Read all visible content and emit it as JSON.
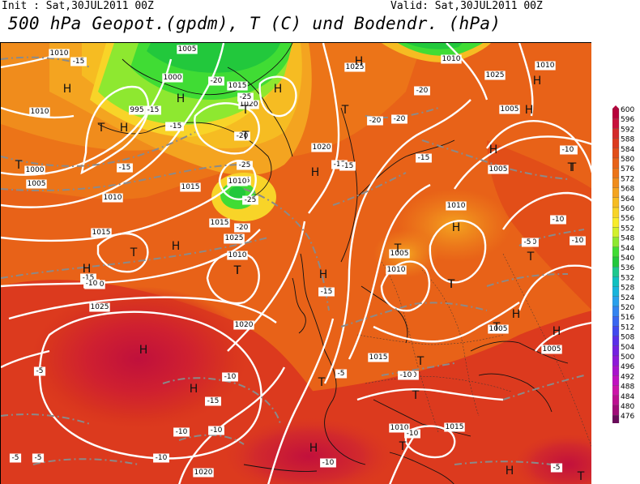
{
  "header": {
    "init": "Init : Sat,30JUL2011 00Z",
    "valid": "Valid: Sat,30JUL2011 00Z",
    "title": "500 hPa Geopot.(gpdm), T (C) und Bodendr. (hPa)"
  },
  "legend": {
    "levels": [
      "600",
      "596",
      "592",
      "588",
      "584",
      "580",
      "576",
      "572",
      "568",
      "564",
      "560",
      "556",
      "552",
      "548",
      "544",
      "540",
      "536",
      "532",
      "528",
      "524",
      "520",
      "516",
      "512",
      "508",
      "504",
      "500",
      "496",
      "492",
      "488",
      "484",
      "480",
      "476"
    ],
    "colors": [
      "#b7003a",
      "#c8103c",
      "#d42a2a",
      "#dc3a1e",
      "#e24e18",
      "#e86218",
      "#ec7418",
      "#f08c1c",
      "#f4a420",
      "#f6bc22",
      "#f8d428",
      "#f8ec2c",
      "#d2f02c",
      "#8ee830",
      "#40dc34",
      "#22c83c",
      "#1ec88e",
      "#10c0c0",
      "#18b4dc",
      "#2aa0ec",
      "#3484f0",
      "#3a66f0",
      "#4248ee",
      "#5a2ee8",
      "#7420e0",
      "#8e18d8",
      "#a812cc",
      "#c010c0",
      "#cc14a8",
      "#bc1090",
      "#a00c78",
      "#6a0a5a"
    ]
  },
  "map": {
    "pressure_labels": [
      {
        "text": "1010"
      },
      {
        "text": "1005"
      },
      {
        "text": "1000"
      },
      {
        "text": "995"
      },
      {
        "text": "1010"
      },
      {
        "text": "1015"
      },
      {
        "text": "1020"
      },
      {
        "text": "1025"
      },
      {
        "text": "1010"
      },
      {
        "text": "1025"
      },
      {
        "text": "1010"
      },
      {
        "text": "1005"
      },
      {
        "text": "1000"
      },
      {
        "text": "1005"
      },
      {
        "text": "1010"
      },
      {
        "text": "1015"
      },
      {
        "text": "1015"
      },
      {
        "text": "1010"
      },
      {
        "text": "1020"
      },
      {
        "text": "1025"
      },
      {
        "text": "1020"
      },
      {
        "text": "1020"
      },
      {
        "text": "1015"
      },
      {
        "text": "1010"
      },
      {
        "text": "1010"
      },
      {
        "text": "1005"
      },
      {
        "text": "1010"
      },
      {
        "text": "1010"
      },
      {
        "text": "1005"
      },
      {
        "text": "1005"
      },
      {
        "text": "1015"
      },
      {
        "text": "1005"
      },
      {
        "text": "1015"
      },
      {
        "text": "1010"
      },
      {
        "text": "1025"
      },
      {
        "text": "1015"
      },
      {
        "text": "1020"
      }
    ],
    "temp_labels": [
      {
        "text": "-15"
      },
      {
        "text": "-20"
      },
      {
        "text": "-15"
      },
      {
        "text": "-15"
      },
      {
        "text": "-15"
      },
      {
        "text": "-25"
      },
      {
        "text": "-20"
      },
      {
        "text": "-25"
      },
      {
        "text": "-15"
      },
      {
        "text": "-25"
      },
      {
        "text": "-20"
      },
      {
        "text": "-20"
      },
      {
        "text": "-15"
      },
      {
        "text": "-15"
      },
      {
        "text": "-10"
      },
      {
        "text": "-10"
      },
      {
        "text": "-20"
      },
      {
        "text": "-15"
      },
      {
        "text": "-10"
      },
      {
        "text": "-10"
      },
      {
        "text": "-15"
      },
      {
        "text": "-10"
      },
      {
        "text": "-15"
      },
      {
        "text": "-10"
      },
      {
        "text": "-10"
      },
      {
        "text": "-5"
      },
      {
        "text": "-5"
      },
      {
        "text": "-10"
      },
      {
        "text": "-15"
      },
      {
        "text": "-10"
      },
      {
        "text": "-10"
      },
      {
        "text": "-10"
      },
      {
        "text": "-5"
      },
      {
        "text": "-10"
      },
      {
        "text": "-5"
      },
      {
        "text": "-5"
      },
      {
        "text": "-10"
      },
      {
        "text": "-10"
      },
      {
        "text": "-20"
      },
      {
        "text": "-15"
      },
      {
        "text": "-5"
      }
    ],
    "hl_marks": [
      {
        "text": "H"
      },
      {
        "text": "H"
      },
      {
        "text": "T"
      },
      {
        "text": "T"
      },
      {
        "text": "T"
      },
      {
        "text": "H"
      },
      {
        "text": "T"
      },
      {
        "text": "H"
      },
      {
        "text": "T"
      },
      {
        "text": "H"
      },
      {
        "text": "H"
      },
      {
        "text": "H"
      },
      {
        "text": "H"
      },
      {
        "text": "T"
      },
      {
        "text": "T"
      },
      {
        "text": "H"
      },
      {
        "text": "T"
      },
      {
        "text": "H"
      },
      {
        "text": "T"
      },
      {
        "text": "T"
      },
      {
        "text": "H"
      },
      {
        "text": "H"
      },
      {
        "text": "H"
      },
      {
        "text": "T"
      },
      {
        "text": "T"
      },
      {
        "text": "T"
      },
      {
        "text": "H"
      },
      {
        "text": "T"
      },
      {
        "text": "T"
      },
      {
        "text": "H"
      },
      {
        "text": "H"
      },
      {
        "text": "T"
      },
      {
        "text": "T"
      },
      {
        "text": "H"
      },
      {
        "text": "T"
      },
      {
        "text": "H"
      },
      {
        "text": "H"
      },
      {
        "text": "T"
      },
      {
        "text": "T"
      },
      {
        "text": "H"
      }
    ]
  }
}
